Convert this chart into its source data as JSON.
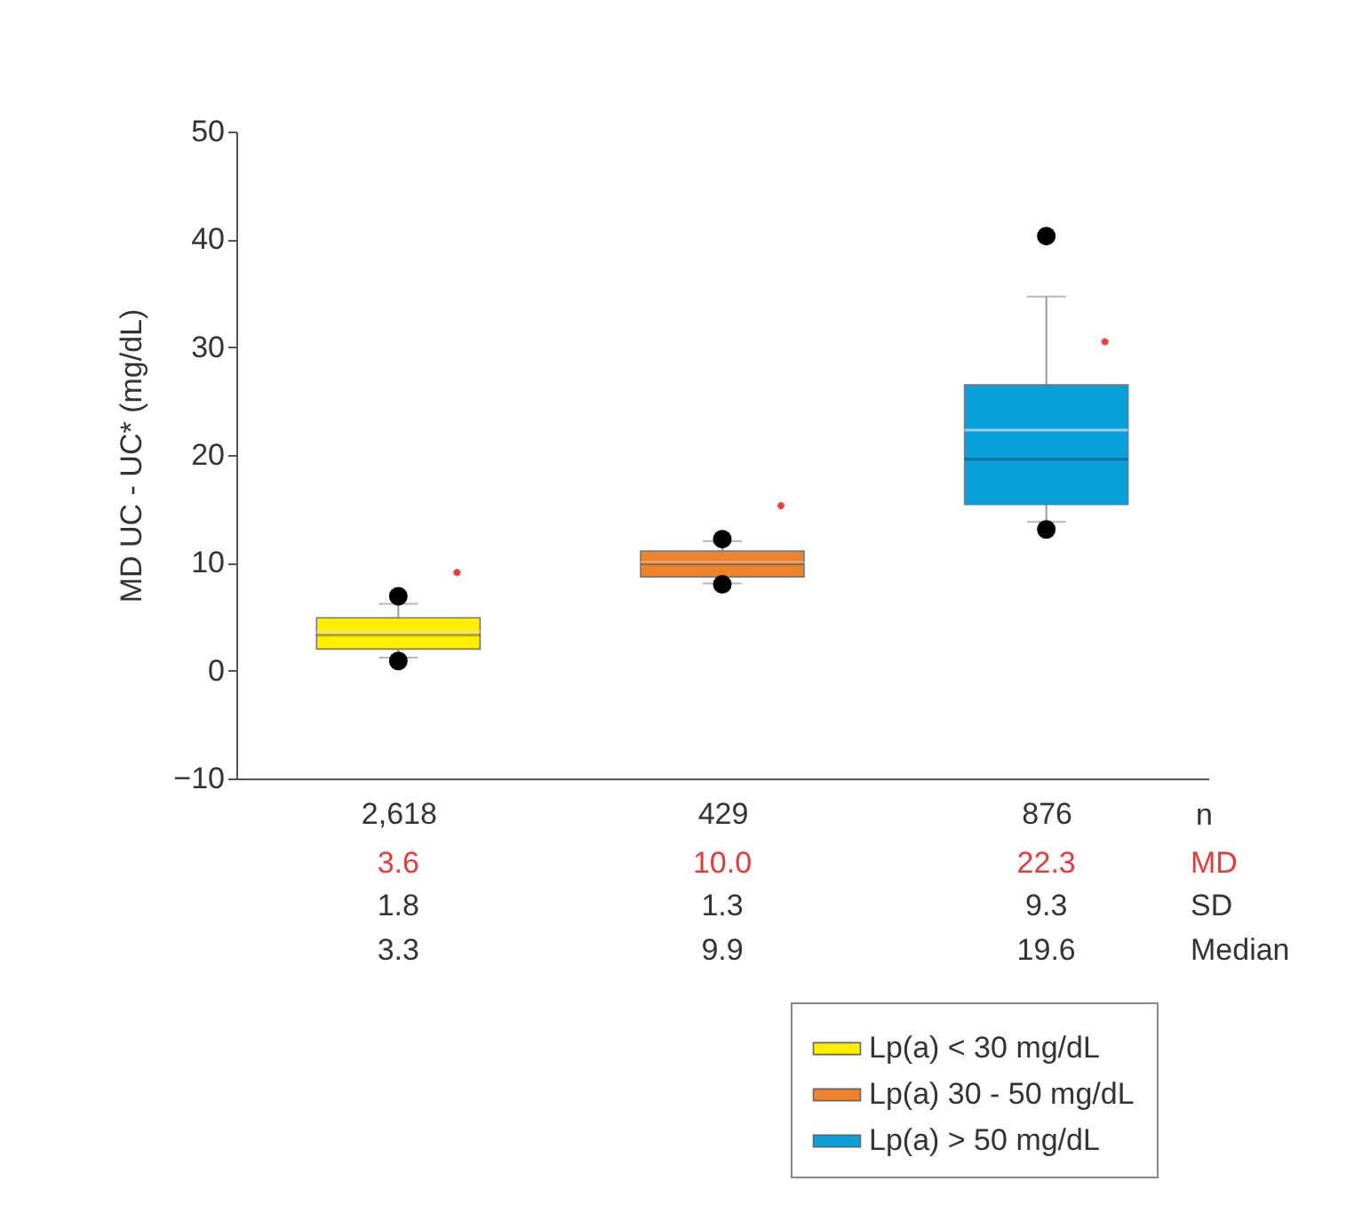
{
  "chart_data": {
    "type": "box",
    "ylabel": "MD UC - UC* (mg/dL)",
    "ylim": [
      -10,
      50
    ],
    "yticks": [
      -10,
      0,
      10,
      20,
      30,
      40,
      50
    ],
    "grid": false,
    "legend": "bottom right",
    "marker": "circle",
    "categories": [
      "2,618",
      "429",
      "876"
    ],
    "series": [
      {
        "name": "Lp(a) < 30 mg/dL",
        "color": "#ffee00",
        "boxes": [
          {
            "low": 1.2,
            "q1": 2.0,
            "median": 3.3,
            "q3": 4.9,
            "high": 6.2,
            "mean": 3.6,
            "outliers": [
              0.9,
              6.9
            ]
          },
          null,
          null
        ]
      },
      {
        "name": "Lp(a) 30 - 50 mg/dL",
        "color": "#f0832a",
        "boxes": [
          null,
          {
            "low": 8.1,
            "q1": 8.7,
            "median": 9.9,
            "q3": 11.1,
            "high": 12.0,
            "mean": 10.0,
            "outliers": [
              8.0,
              12.2
            ]
          },
          null
        ]
      },
      {
        "name": "Lp(a) > 50 mg/dL",
        "color": "#0aa0dc",
        "boxes": [
          null,
          null,
          {
            "low": 13.8,
            "q1": 15.4,
            "median": 19.6,
            "q3": 26.5,
            "high": 34.7,
            "mean": 22.3,
            "outliers": [
              13.1,
              40.3
            ]
          }
        ]
      },
      {
        "type": "scatter",
        "marker": "cross",
        "color": "#e8393b",
        "x": [
          "2,618",
          "429",
          "876"
        ],
        "values": [
          9.1,
          15.3,
          30.5
        ]
      }
    ],
    "annotations": [
      "n",
      "3.6",
      "10.0",
      "22.3",
      "MD",
      "1.8",
      "1.3",
      "9.3",
      "SD",
      "3.3",
      "9.9",
      "19.6",
      "Median"
    ]
  }
}
